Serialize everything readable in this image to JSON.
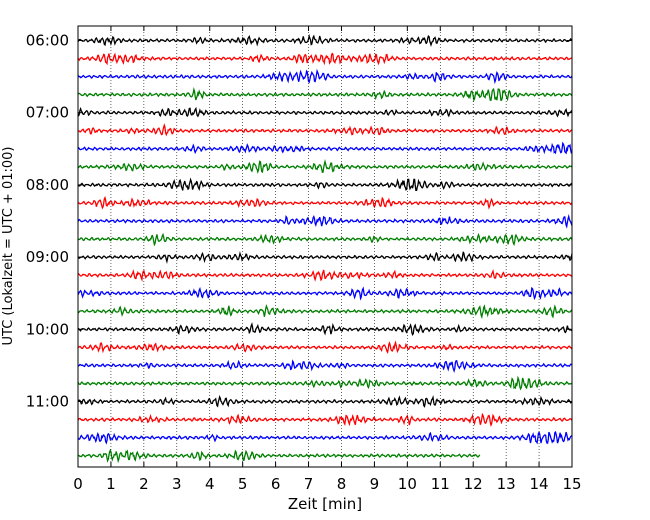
{
  "chart_data": {
    "type": "line",
    "title": "",
    "xlabel": "Zeit  [min]",
    "ylabel": "UTC (Lokalzeit = UTC + 01:00)",
    "xlim": [
      0,
      15
    ],
    "xticks": [
      "0",
      "1",
      "2",
      "3",
      "4",
      "5",
      "6",
      "7",
      "8",
      "9",
      "10",
      "11",
      "12",
      "13",
      "14",
      "15"
    ],
    "ytick_labels": [
      "06:00",
      "07:00",
      "08:00",
      "09:00",
      "10:00",
      "11:00"
    ],
    "grid": {
      "x": true,
      "y": false,
      "style": "dotted"
    },
    "trace_colors": [
      "#000000",
      "#ff0000",
      "#0000ff",
      "#007f00"
    ],
    "trace_start_times": [
      "06:00",
      "06:15",
      "06:30",
      "06:45",
      "07:00",
      "07:15",
      "07:30",
      "07:45",
      "08:00",
      "08:15",
      "08:30",
      "08:45",
      "09:00",
      "09:15",
      "09:30",
      "09:45",
      "10:00",
      "10:15",
      "10:30",
      "10:45",
      "11:00",
      "11:15",
      "11:30",
      "11:45"
    ],
    "trace_duration_min": [
      15,
      15,
      15,
      15,
      15,
      15,
      15,
      15,
      15,
      15,
      15,
      15,
      15,
      15,
      15,
      15,
      15,
      15,
      15,
      15,
      15,
      15,
      15,
      12.2
    ]
  }
}
